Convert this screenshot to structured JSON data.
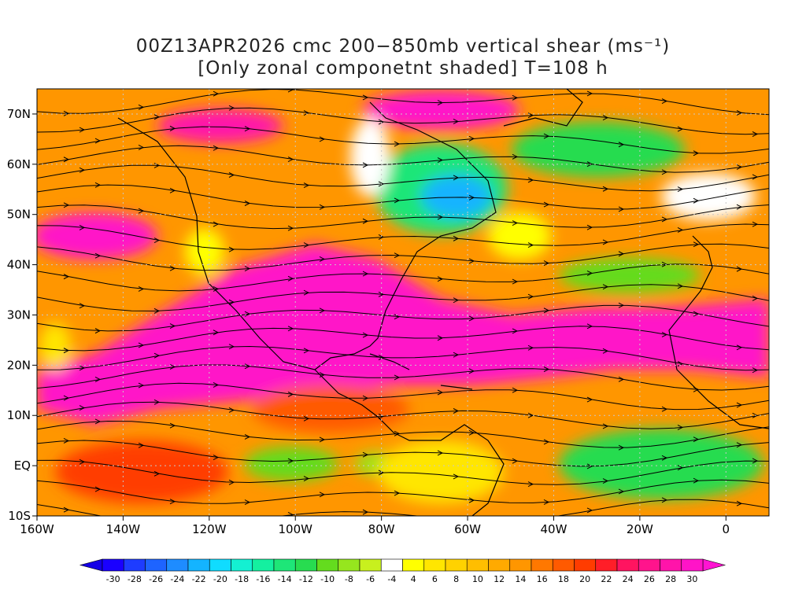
{
  "title": {
    "line1": "00Z13APR2026 cmc 200−850mb vertical shear (ms⁻¹)",
    "line2": "[Only zonal componetnt shaded] T=108 h"
  },
  "map": {
    "lon_range": [
      -160,
      10
    ],
    "lat_range": [
      -10,
      75
    ],
    "lon_ticks": [
      {
        "value": -160,
        "label": "160W"
      },
      {
        "value": -140,
        "label": "140W"
      },
      {
        "value": -120,
        "label": "120W"
      },
      {
        "value": -100,
        "label": "100W"
      },
      {
        "value": -80,
        "label": "80W"
      },
      {
        "value": -60,
        "label": "60W"
      },
      {
        "value": -40,
        "label": "40W"
      },
      {
        "value": -20,
        "label": "20W"
      },
      {
        "value": 0,
        "label": "0"
      }
    ],
    "lat_ticks": [
      {
        "value": 70,
        "label": "70N"
      },
      {
        "value": 60,
        "label": "60N"
      },
      {
        "value": 50,
        "label": "50N"
      },
      {
        "value": 40,
        "label": "40N"
      },
      {
        "value": 30,
        "label": "30N"
      },
      {
        "value": 20,
        "label": "20N"
      },
      {
        "value": 10,
        "label": "10N"
      },
      {
        "value": 0,
        "label": "EQ"
      },
      {
        "value": -10,
        "label": "10S"
      }
    ],
    "gridlines": "dotted"
  },
  "colorbar": {
    "labels": [
      "-30",
      "-28",
      "-26",
      "-24",
      "-22",
      "-20",
      "-18",
      "-16",
      "-14",
      "-12",
      "-10",
      "-8",
      "-6",
      "-4",
      "4",
      "6",
      "8",
      "10",
      "12",
      "14",
      "16",
      "18",
      "20",
      "22",
      "24",
      "26",
      "28",
      "30"
    ],
    "colors": [
      "#1a00ff",
      "#1e3cff",
      "#1e64ff",
      "#1e8cff",
      "#14b4ff",
      "#10dcff",
      "#14f0d2",
      "#14f0a0",
      "#1ee678",
      "#28dc50",
      "#64dc1e",
      "#96e61e",
      "#c8f01e",
      "#ffffff",
      "#ffff00",
      "#ffe600",
      "#ffd200",
      "#ffbe00",
      "#ffaa00",
      "#ff9600",
      "#ff7800",
      "#ff5a00",
      "#ff3c00",
      "#ff1e28",
      "#ff1460",
      "#ff148c",
      "#ff14aa",
      "#ff14c8"
    ],
    "under_color": "#1400e6",
    "over_color": "#ff14d2"
  }
}
